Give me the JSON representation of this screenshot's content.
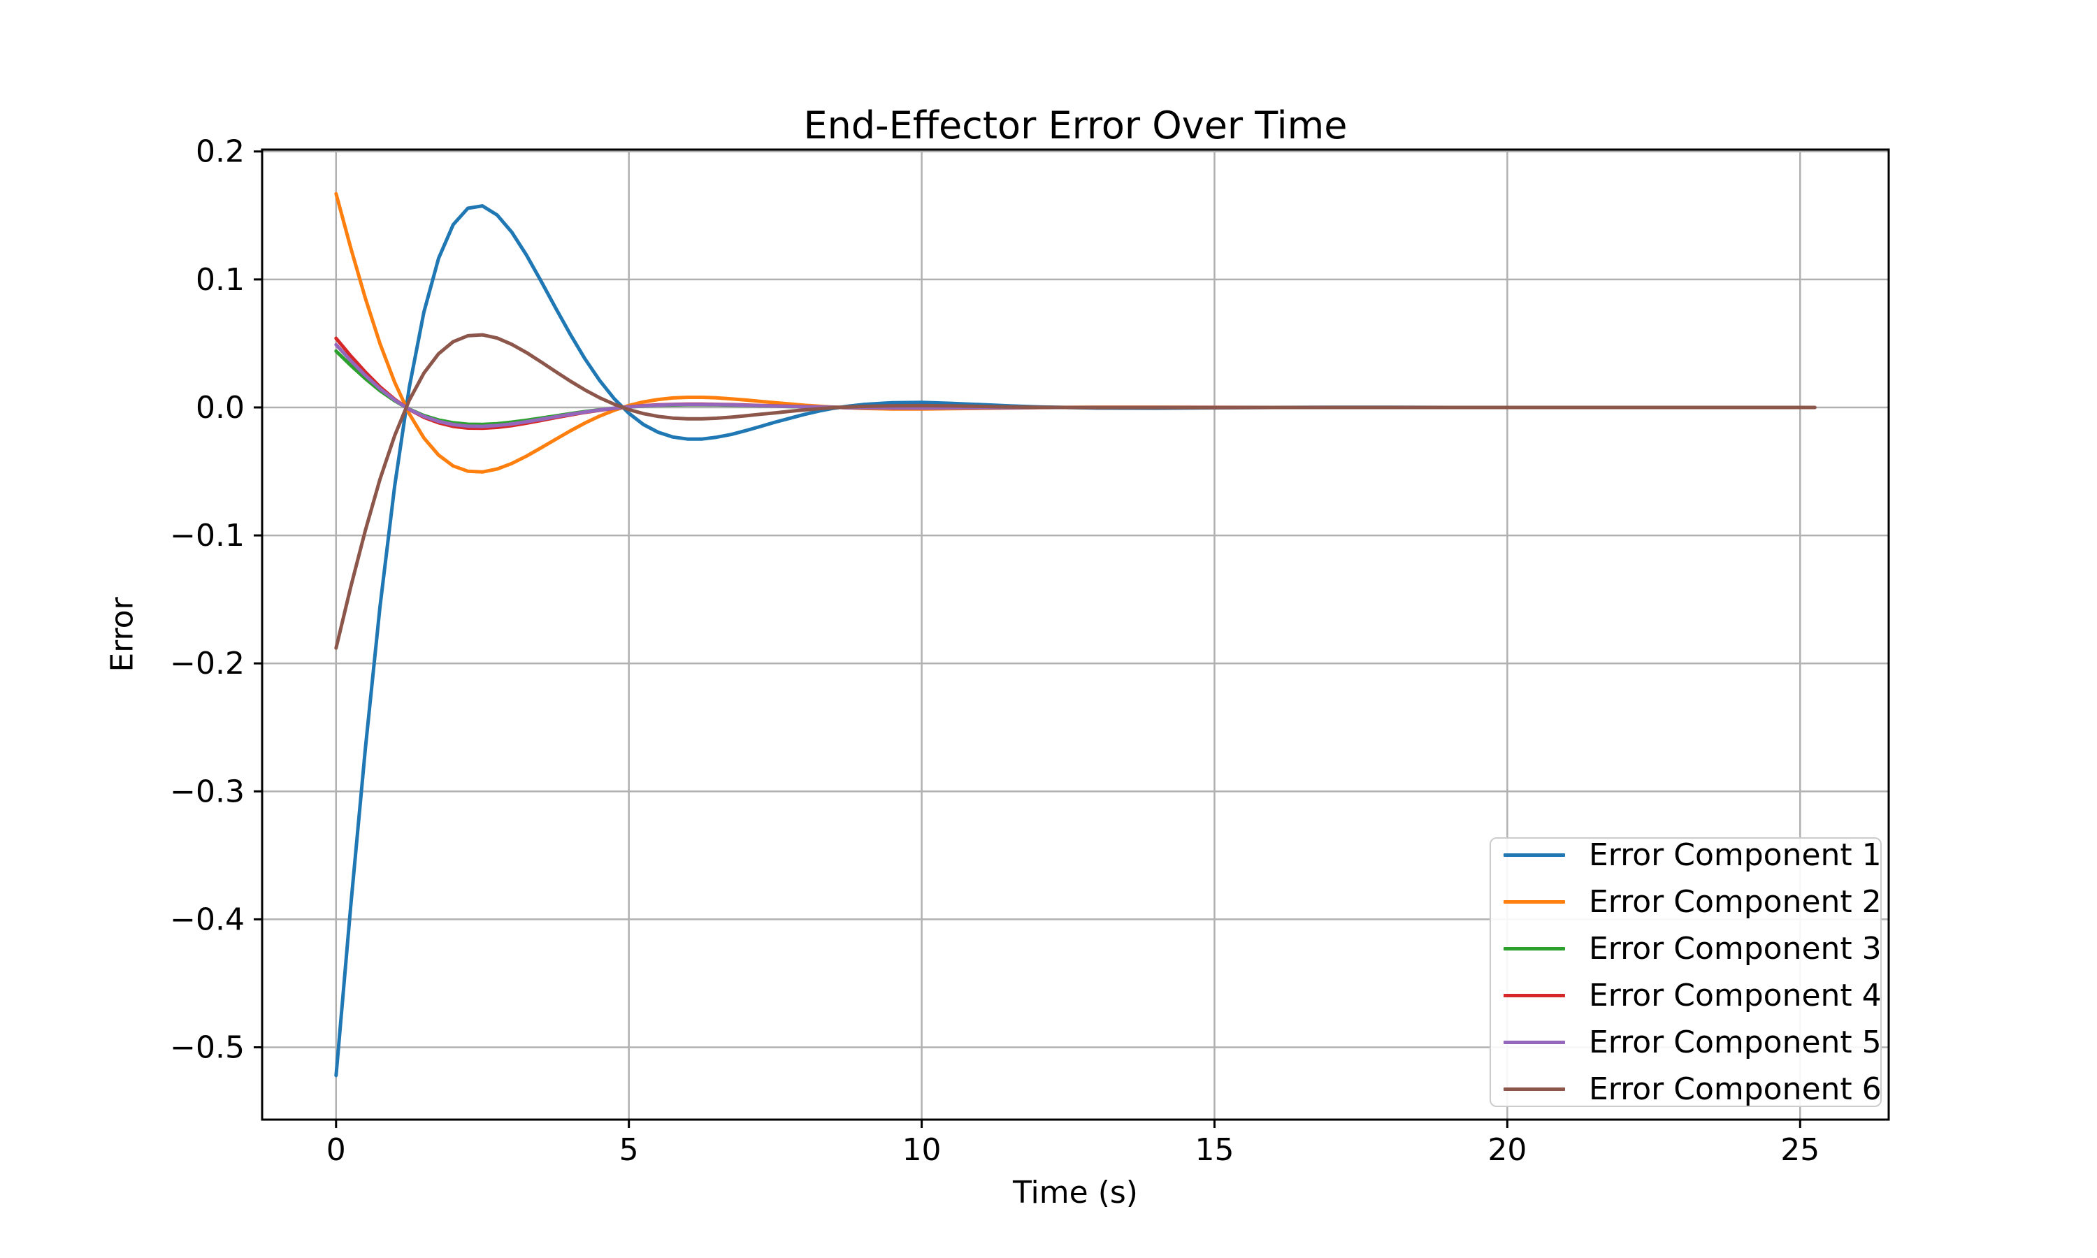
{
  "figure": {
    "background": "#ffffff",
    "title": "End-Effector Error Over Time"
  },
  "chart_data": {
    "type": "line",
    "title": "End-Effector Error Over Time",
    "xlabel": "Time (s)",
    "ylabel": "Error",
    "grid": true,
    "grid_color": "#b0b0b0",
    "spine_color": "#000000",
    "legend_position": "lower right",
    "xlim": [
      -1.2625,
      26.5125
    ],
    "ylim": [
      -0.5565,
      0.2015
    ],
    "xticks": {
      "values": [
        0,
        5,
        10,
        15,
        20,
        25
      ],
      "labels": [
        "0",
        "5",
        "10",
        "15",
        "20",
        "25"
      ]
    },
    "yticks": {
      "values": [
        0.2,
        0.1,
        0.0,
        -0.1,
        -0.2,
        -0.3,
        -0.4,
        -0.5
      ],
      "labels": [
        "0.2",
        "0.1",
        "0.0",
        "−0.1",
        "−0.2",
        "−0.3",
        "−0.4",
        "−0.5"
      ]
    },
    "x": [
      0,
      0.25,
      0.5,
      0.75,
      1,
      1.25,
      1.5,
      1.75,
      2,
      2.25,
      2.5,
      2.75,
      3,
      3.25,
      3.5,
      3.75,
      4,
      4.25,
      4.5,
      4.75,
      5,
      5.25,
      5.5,
      5.75,
      6,
      6.25,
      6.5,
      6.75,
      7,
      7.25,
      7.5,
      7.75,
      8,
      8.25,
      8.5,
      8.75,
      9,
      9.5,
      10,
      10.5,
      11,
      11.5,
      12,
      13,
      14,
      15,
      16,
      17,
      18,
      19,
      20,
      21,
      22,
      23,
      24,
      25,
      25.25
    ],
    "series": [
      {
        "name": "Error Component 1",
        "color": "#1f77b4",
        "values": [
          -0.522,
          -0.39,
          -0.2665,
          -0.1559,
          -0.0615,
          0.0156,
          0.0744,
          0.1164,
          0.1428,
          0.1556,
          0.1575,
          0.1504,
          0.137,
          0.1191,
          0.0988,
          0.0777,
          0.0571,
          0.038,
          0.0211,
          0.0068,
          -0.0046,
          -0.0134,
          -0.0194,
          -0.0231,
          -0.0247,
          -0.0247,
          -0.0233,
          -0.0211,
          -0.0181,
          -0.0148,
          -0.0115,
          -0.0084,
          -0.0054,
          -0.0028,
          -0.0006,
          0.001,
          0.0023,
          0.0037,
          0.0039,
          0.0032,
          0.0022,
          0.0012,
          0.0004,
          -0.0005,
          -0.0006,
          -0.0003,
          0,
          0.0001,
          0.0001,
          0,
          0,
          0,
          0,
          0,
          0,
          0,
          0
        ]
      },
      {
        "name": "Error Component 2",
        "color": "#ff7f0e",
        "values": [
          0.167,
          0.1248,
          0.0853,
          0.0499,
          0.0197,
          -0.005,
          -0.0238,
          -0.0372,
          -0.0457,
          -0.0498,
          -0.0504,
          -0.0481,
          -0.0438,
          -0.0381,
          -0.0316,
          -0.0249,
          -0.0183,
          -0.0122,
          -0.0068,
          -0.0022,
          0.0015,
          0.0043,
          0.0062,
          0.0074,
          0.0079,
          0.0079,
          0.0075,
          0.0067,
          0.0058,
          0.0047,
          0.0037,
          0.0027,
          0.0017,
          0.0009,
          0.0002,
          -0.0003,
          -0.0008,
          -0.0012,
          -0.0012,
          -0.001,
          -0.0007,
          -0.0004,
          -0.0001,
          0.0002,
          0.0002,
          0.0001,
          0,
          0,
          0,
          0,
          0,
          0,
          0,
          0,
          0,
          0,
          0
        ]
      },
      {
        "name": "Error Component 3",
        "color": "#2ca02c",
        "values": [
          0.044,
          0.0329,
          0.0225,
          0.0131,
          0.0052,
          -0.0013,
          -0.0063,
          -0.0098,
          -0.012,
          -0.0131,
          -0.0133,
          -0.0127,
          -0.0115,
          -0.01,
          -0.0083,
          -0.0066,
          -0.0048,
          -0.0032,
          -0.0018,
          -0.0006,
          0.0004,
          0.0011,
          0.0016,
          0.0019,
          0.0021,
          0.0021,
          0.002,
          0.0018,
          0.0015,
          0.0012,
          0.001,
          0.0007,
          0.0005,
          0.0002,
          0.0001,
          -0.0001,
          -0.0002,
          -0.0003,
          -0.0003,
          -0.0003,
          -0.0002,
          -0.0001,
          0,
          0,
          0,
          0,
          0,
          0,
          0,
          0,
          0,
          0,
          0,
          0,
          0,
          0,
          0
        ]
      },
      {
        "name": "Error Component 4",
        "color": "#d62728",
        "values": [
          0.054,
          0.0403,
          0.0276,
          0.0161,
          0.0064,
          -0.0016,
          -0.0077,
          -0.012,
          -0.0148,
          -0.0161,
          -0.0163,
          -0.0156,
          -0.0142,
          -0.0123,
          -0.0102,
          -0.008,
          -0.0059,
          -0.0039,
          -0.0022,
          -0.0007,
          0.0005,
          0.0014,
          0.002,
          0.0024,
          0.0026,
          0.0026,
          0.0024,
          0.0022,
          0.0019,
          0.0015,
          0.0012,
          0.0009,
          0.0006,
          0.0003,
          0.0001,
          -0.0001,
          -0.0002,
          -0.0004,
          -0.0004,
          -0.0003,
          -0.0002,
          -0.0001,
          0,
          0,
          0,
          0,
          0,
          0,
          0,
          0,
          0,
          0,
          0,
          0,
          0,
          0,
          0
        ]
      },
      {
        "name": "Error Component 5",
        "color": "#9467bd",
        "values": [
          0.049,
          0.0366,
          0.025,
          0.0146,
          0.0058,
          -0.0015,
          -0.007,
          -0.0109,
          -0.0134,
          -0.0146,
          -0.0148,
          -0.0141,
          -0.0129,
          -0.0112,
          -0.0093,
          -0.0073,
          -0.0054,
          -0.0036,
          -0.002,
          -0.0006,
          0.0004,
          0.0013,
          0.0018,
          0.0022,
          0.0023,
          0.0023,
          0.0022,
          0.002,
          0.0017,
          0.0014,
          0.0011,
          0.0008,
          0.0005,
          0.0003,
          0.0001,
          -0.0001,
          -0.0002,
          -0.0003,
          -0.0004,
          -0.0003,
          -0.0002,
          -0.0001,
          0,
          0,
          0,
          0,
          0,
          0,
          0,
          0,
          0,
          0,
          0,
          0,
          0,
          0,
          0
        ]
      },
      {
        "name": "Error Component 6",
        "color": "#8c564b",
        "values": [
          -0.188,
          -0.1405,
          -0.096,
          -0.0561,
          -0.0221,
          0.0056,
          0.0268,
          0.0419,
          0.0514,
          0.056,
          0.0567,
          0.0542,
          0.0493,
          0.0429,
          0.0356,
          0.028,
          0.0206,
          0.0137,
          0.0076,
          0.0025,
          -0.0017,
          -0.0048,
          -0.007,
          -0.0083,
          -0.0089,
          -0.0089,
          -0.0084,
          -0.0076,
          -0.0065,
          -0.0053,
          -0.0042,
          -0.003,
          -0.0019,
          -0.001,
          -0.0002,
          0.0004,
          0.0008,
          0.0013,
          0.0014,
          0.0012,
          0.0008,
          0.0004,
          0.0001,
          -0.0002,
          -0.0002,
          -0.0001,
          0,
          0,
          0,
          0,
          0,
          0,
          0,
          0,
          0,
          0,
          0
        ]
      }
    ]
  }
}
